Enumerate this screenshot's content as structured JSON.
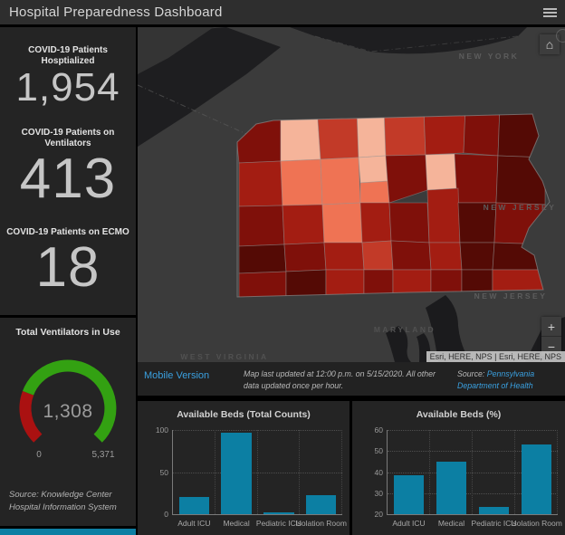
{
  "header": {
    "title": "Hospital Preparedness Dashboard"
  },
  "stats": {
    "items": [
      {
        "label": "COVID-19 Patients Hosptialized",
        "value": "1,954"
      },
      {
        "label": "COVID-19 Patients on Ventilators",
        "value": "413"
      },
      {
        "label": "COVID-19 Patients on ECMO",
        "value": "18"
      }
    ]
  },
  "gauge": {
    "title": "Total Ventilators in Use",
    "value": 1308,
    "min": 0,
    "max": 5371,
    "value_display": "1,308",
    "min_label": "0",
    "max_label": "5,371",
    "source": "Source: Knowledge Center Hospital Information System",
    "value_color": "#aa1111",
    "remainder_color": "#33a112"
  },
  "map": {
    "labels": [
      "NEW YORK",
      "NEW JERSEY",
      "NEW JERSEY",
      "MARYLAND",
      "WEST VIRGINIA"
    ],
    "attribution": "Esri, HERE, NPS | Esri, HERE, NPS",
    "mobile_link": "Mobile Version",
    "caption": "Map last updated at 12:00 p.m. on 5/15/2020. All other data updated once per hour.",
    "source_prefix": "Source: ",
    "source_link": "Pennsylvania Department of Health",
    "controls": {
      "zoom_in": "+",
      "zoom_out": "−",
      "home": "⌂"
    },
    "choropleth_palette": [
      "#f5b49a",
      "#ef7354",
      "#c23a28",
      "#a31d12",
      "#7f100a",
      "#540a05"
    ]
  },
  "chart_data": [
    {
      "type": "bar",
      "title": "Available Beds (Total Counts)",
      "categories": [
        "Adult ICU",
        "Medical",
        "Pediatric ICU",
        "Isolation Room"
      ],
      "values": [
        20,
        97,
        2,
        23
      ],
      "ylim": [
        0,
        100
      ],
      "yticks": [
        0,
        50,
        100
      ],
      "xlabel": "",
      "ylabel": "",
      "bar_color": "#0c7fa3",
      "grid": true,
      "legend": false
    },
    {
      "type": "bar",
      "title": "Available Beds (%)",
      "categories": [
        "Adult ICU",
        "Medical",
        "Pediatric ICU",
        "Isolation Room"
      ],
      "values": [
        38.5,
        45,
        23.5,
        53
      ],
      "ylim": [
        20,
        60
      ],
      "yticks": [
        20,
        30,
        40,
        50,
        60
      ],
      "xlabel": "",
      "ylabel": "",
      "bar_color": "#0c7fa3",
      "grid": true,
      "legend": false
    }
  ],
  "colors": {
    "accent_blue": "#3aa0e0",
    "bar_teal": "#0c7fa3",
    "panel_bg": "#242424"
  }
}
